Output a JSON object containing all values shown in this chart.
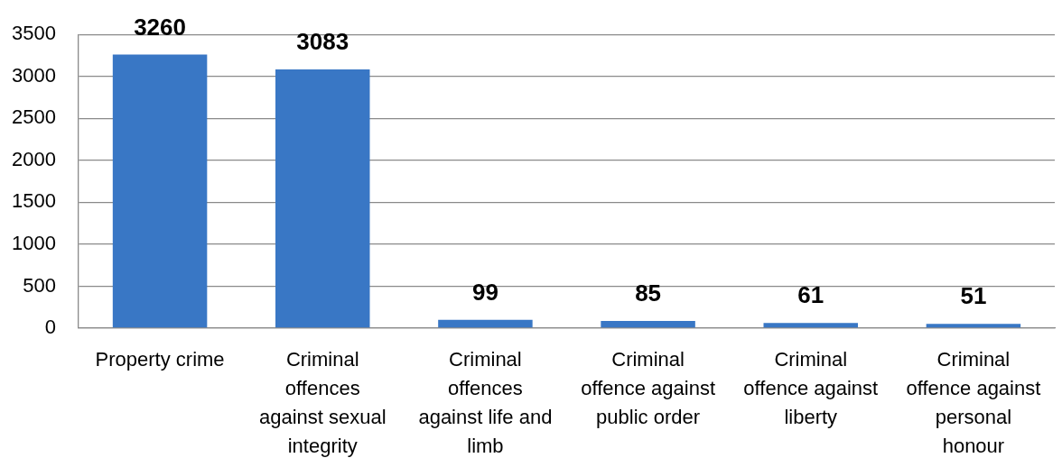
{
  "chart_data": {
    "type": "bar",
    "categories": [
      "Property crime",
      "Criminal offences against sexual integrity",
      "Criminal offences against life and limb",
      "Criminal offence against public order",
      "Criminal offence against liberty",
      "Criminal offence against personal honour"
    ],
    "values": [
      3260,
      3083,
      99,
      85,
      61,
      51
    ],
    "color": "#3977c5",
    "ylim": [
      0,
      3500
    ],
    "yticks": [
      0,
      500,
      1000,
      1500,
      2000,
      2500,
      3000,
      3500
    ],
    "grid": "y",
    "data_labels": true
  }
}
